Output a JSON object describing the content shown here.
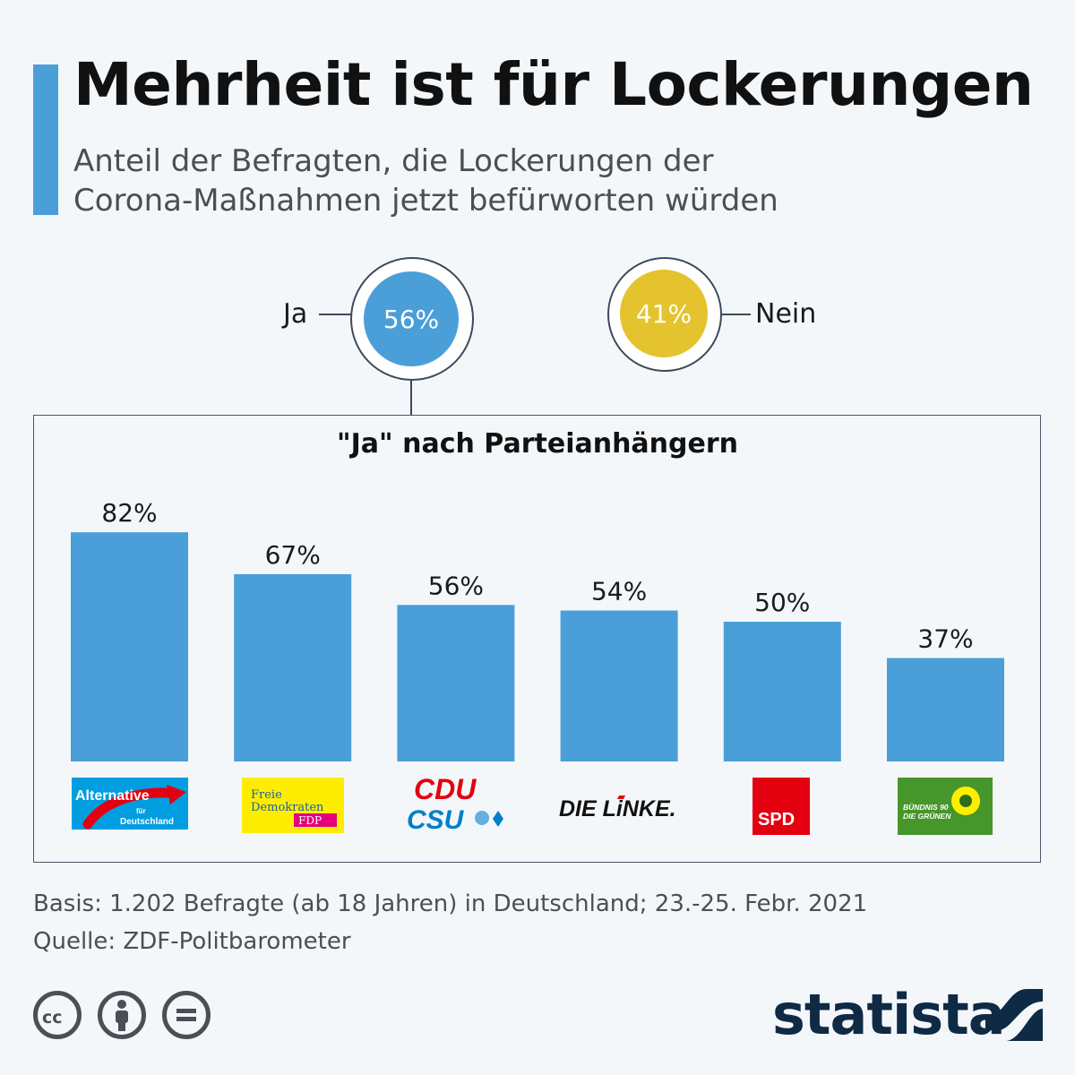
{
  "header": {
    "title": "Mehrheit ist für Lockerungen",
    "subtitle_line1": "Anteil der Befragten, die Lockerungen der",
    "subtitle_line2": "Corona-Maßnahmen jetzt befürworten würden"
  },
  "summary": {
    "yes": {
      "label": "Ja",
      "value_label": "56%",
      "value": 56,
      "color": "#4a9fd8"
    },
    "no": {
      "label": "Nein",
      "value_label": "41%",
      "value": 41,
      "color": "#e4c32e"
    }
  },
  "chart_data": {
    "type": "bar",
    "title": "\"Ja\" nach Parteianhängern",
    "categories": [
      "AfD",
      "FDP",
      "CDU/CSU",
      "Die Linke",
      "SPD",
      "Bündnis 90/Die Grünen"
    ],
    "values": [
      82,
      67,
      56,
      54,
      50,
      37
    ],
    "value_labels": [
      "82%",
      "67%",
      "56%",
      "54%",
      "50%",
      "37%"
    ],
    "unit": "%",
    "ylim": [
      0,
      100
    ],
    "xlabel": "",
    "ylabel": "",
    "bar_color": "#4a9fd8"
  },
  "logos": {
    "afd": {
      "line1": "Alternative",
      "line2": "für",
      "line3": "Deutschland",
      "color": "#009ee0"
    },
    "fdp": {
      "line1": "Freie",
      "line2": "Demokraten",
      "line3": "FDP",
      "color": "#ffed00"
    },
    "cducsu": {
      "line1": "CDU",
      "line2": "CSU"
    },
    "linke": {
      "text": "DIE LiNKE."
    },
    "spd": {
      "text": "SPD",
      "color": "#e3000f"
    },
    "gruene": {
      "line1": "BÜNDNIS 90",
      "line2": "DIE GRÜNEN",
      "color": "#46962b"
    }
  },
  "footer": {
    "basis": "Basis: 1.202 Befragte (ab 18 Jahren) in Deutschland; 23.-25. Febr. 2021",
    "source": "Quelle: ZDF-Politbarometer",
    "brand": "statista",
    "license_icons": [
      "cc-icon",
      "attribution-icon",
      "no-derivatives-icon"
    ]
  }
}
